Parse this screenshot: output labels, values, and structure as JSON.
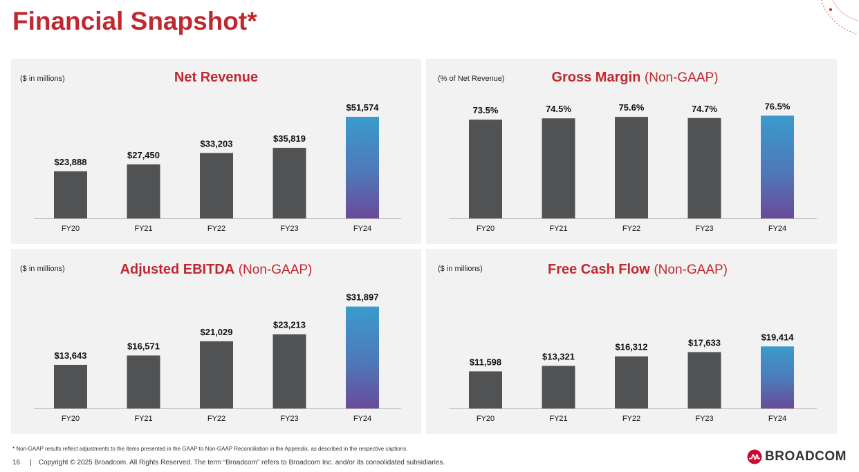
{
  "page": {
    "title": "Financial Snapshot*",
    "footnote": "* Non-GAAP results reflect adjustments to the items presented in the GAAP to Non-GAAP Reconciliation in the Appendix, as described in the respective captions.",
    "page_number": "16",
    "separator": "|",
    "copyright": "Copyright © 2025 Broadcom.  All Rights Reserved. The term “Broadcom” refers to Broadcom Inc. and/or its consolidated subsidiaries.",
    "logo_text": "BROADCOM",
    "logo_icon": "broadcom-logo-icon"
  },
  "colors": {
    "brand_red": "#c0282f",
    "bar_gray": "#505254",
    "highlight_top": "#3a9bcd",
    "highlight_bottom": "#6a4a9a",
    "panel_bg": "#f2f2f2"
  },
  "panels": [
    {
      "unit": "($ in millions)",
      "title": "Net Revenue",
      "subtitle": ""
    },
    {
      "unit": "(% of Net Revenue)",
      "title": "Gross Margin",
      "subtitle": "(Non-GAAP)"
    },
    {
      "unit": "($ in millions)",
      "title": "Adjusted EBITDA",
      "subtitle": "(Non-GAAP)"
    },
    {
      "unit": "($ in millions)",
      "title": "Free Cash Flow",
      "subtitle": "(Non-GAAP)"
    }
  ],
  "chart_data": [
    {
      "type": "bar",
      "title": "Net Revenue",
      "ylabel": "($ in millions)",
      "categories": [
        "FY20",
        "FY21",
        "FY22",
        "FY23",
        "FY24"
      ],
      "values": [
        23888,
        27450,
        33203,
        35819,
        51574
      ],
      "labels": [
        "$23,888",
        "$27,450",
        "$33,203",
        "$35,819",
        "$51,574"
      ],
      "ylim": [
        0,
        60000
      ],
      "highlight_index": 4
    },
    {
      "type": "bar",
      "title": "Gross Margin (Non-GAAP)",
      "ylabel": "(% of Net Revenue)",
      "categories": [
        "FY20",
        "FY21",
        "FY22",
        "FY23",
        "FY24"
      ],
      "values": [
        73.5,
        74.5,
        75.6,
        74.7,
        76.5
      ],
      "labels": [
        "73.5%",
        "74.5%",
        "75.6%",
        "74.7%",
        "76.5%"
      ],
      "ylim": [
        0,
        88
      ],
      "highlight_index": 4
    },
    {
      "type": "bar",
      "title": "Adjusted EBITDA (Non-GAAP)",
      "ylabel": "($ in millions)",
      "categories": [
        "FY20",
        "FY21",
        "FY22",
        "FY23",
        "FY24"
      ],
      "values": [
        13643,
        16571,
        21029,
        23213,
        31897
      ],
      "labels": [
        "$13,643",
        "$16,571",
        "$21,029",
        "$23,213",
        "$31,897"
      ],
      "ylim": [
        0,
        37000
      ],
      "highlight_index": 4
    },
    {
      "type": "bar",
      "title": "Free Cash Flow (Non-GAAP)",
      "ylabel": "($ in millions)",
      "categories": [
        "FY20",
        "FY21",
        "FY22",
        "FY23",
        "FY24"
      ],
      "values": [
        11598,
        13321,
        16312,
        17633,
        19414
      ],
      "labels": [
        "$11,598",
        "$13,321",
        "$16,312",
        "$17,633",
        "$19,414"
      ],
      "ylim": [
        0,
        37000
      ],
      "highlight_index": 4
    }
  ]
}
